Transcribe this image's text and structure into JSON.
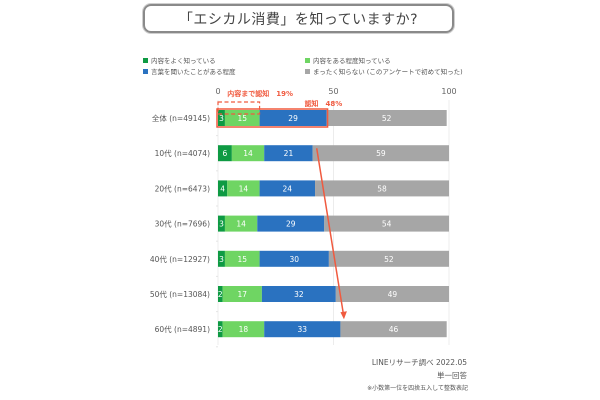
{
  "title": "「エシカル消費」を知っていますか?",
  "chart_data": {
    "type": "bar",
    "orientation": "horizontal",
    "stacked": true,
    "title": "「エシカル消費」を知っていますか?",
    "xlim": [
      0,
      100
    ],
    "x_ticks": [
      "0",
      "50",
      "100"
    ],
    "grid": true,
    "legend_position": "top",
    "categories": [
      "全体 (n=49145)",
      "10代 (n=4074)",
      "20代 (n=6473)",
      "30代 (n=7696)",
      "40代 (n=12927)",
      "50代 (n=13084)",
      "60代 (n=4891)"
    ],
    "series": [
      {
        "name": "内容をよく知っている",
        "color": "#0e9a43",
        "values": [
          3,
          6,
          4,
          3,
          3,
          2,
          2
        ]
      },
      {
        "name": "内容をある程度知っている",
        "color": "#6fd563",
        "values": [
          15,
          14,
          14,
          14,
          15,
          17,
          18
        ]
      },
      {
        "name": "言葉を聞いたことがある程度",
        "color": "#2a72c0",
        "values": [
          29,
          21,
          24,
          29,
          30,
          32,
          33
        ]
      },
      {
        "name": "まったく知らない (このアンケートで初めて知った)",
        "color": "#a6a6a6",
        "values": [
          52,
          59,
          58,
          54,
          52,
          49,
          46
        ]
      }
    ],
    "annotations": [
      {
        "text": "内容まで認知　19%",
        "type": "dashed-bracket",
        "covers": "first two series of 全体"
      },
      {
        "text": "認知　48%",
        "type": "box",
        "covers": "first three series of 全体"
      },
      {
        "type": "arrow",
        "from": "10代",
        "to": "60代",
        "meaning": "awareness increases with age"
      }
    ]
  },
  "legend": [
    {
      "label": "内容をよく知っている",
      "color": "#0e9a43"
    },
    {
      "label": "内容をある程度知っている",
      "color": "#6fd563"
    },
    {
      "label": "言葉を聞いたことがある程度",
      "color": "#2a72c0"
    },
    {
      "label": "まったく知らない (このアンケートで初めて知った)",
      "color": "#a6a6a6"
    }
  ],
  "annotation_labels": {
    "content_aware": "内容まで認知　19%",
    "aware": "認知　48%"
  },
  "accent_color": "#f05a3f",
  "footer": {
    "source": "LINEリサーチ調べ 2022.05",
    "answer_type": "単一回答",
    "note": "※小数第一位を四捨五入して整数表記"
  }
}
